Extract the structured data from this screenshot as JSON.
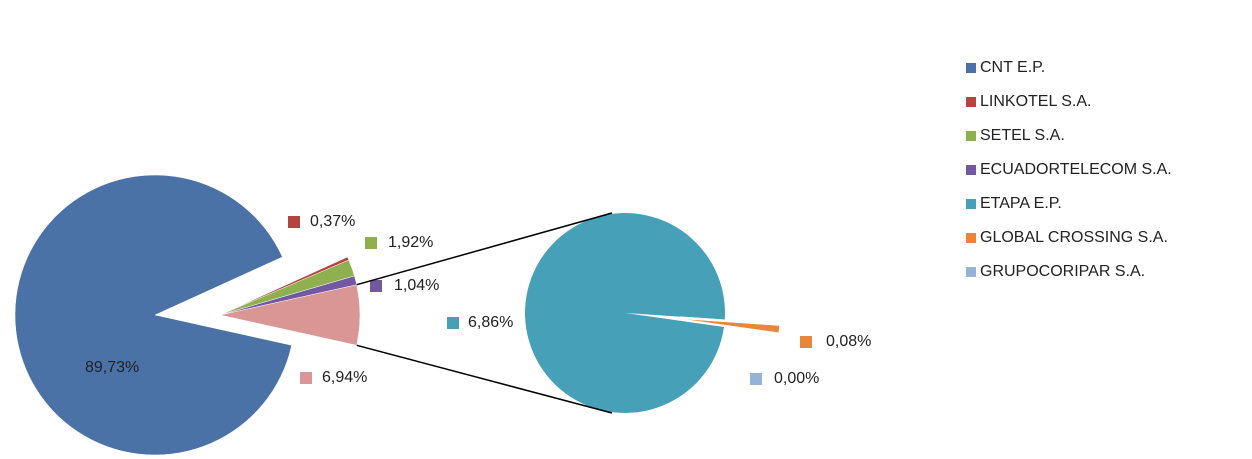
{
  "chart_data": {
    "type": "pie-of-pie",
    "legend": "right",
    "pies": [
      {
        "categories": [
          "CNT E.P.",
          "LINKOTEL S.A.",
          "SETEL S.A.",
          "ECUADORTELECOM S.A.",
          null
        ],
        "values": [
          89.73,
          0.37,
          1.92,
          1.04,
          6.94
        ],
        "value_labels": [
          "89,73%",
          "0,37%",
          "1,92%",
          "1,04%",
          "6,94%"
        ],
        "colors": [
          "#4a72a6",
          "#b5443f",
          "#8eb04f",
          "#7258a0",
          "#d99694"
        ]
      },
      {
        "categories": [
          "ETAPA E.P.",
          "GLOBAL CROSSING S.A.",
          "GRUPOCORIPAR S.A."
        ],
        "values": [
          6.86,
          0.08,
          0.0
        ],
        "value_labels": [
          "6,86%",
          "0,08%",
          "0,00%"
        ],
        "colors": [
          "#45a0b8",
          "#e8873a",
          "#95b3d7"
        ]
      }
    ]
  }
}
